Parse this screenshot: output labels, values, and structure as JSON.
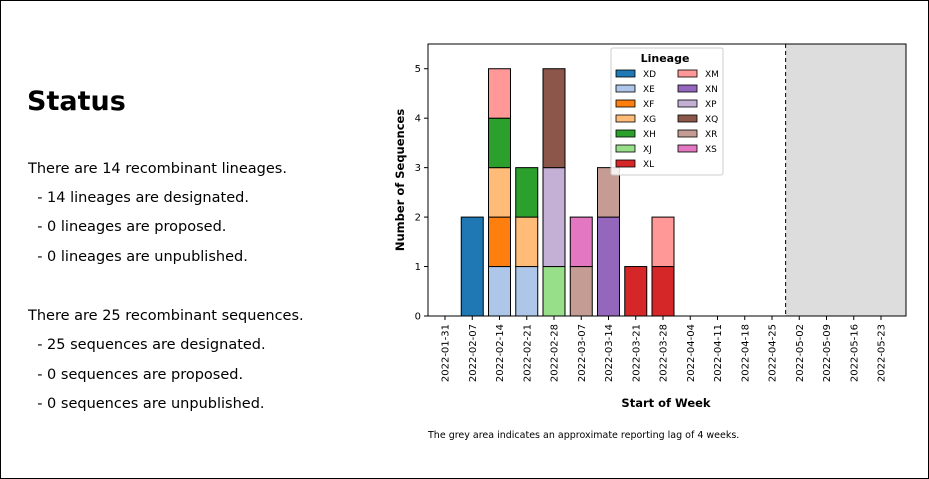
{
  "status": {
    "title": "Status",
    "lines": [
      "There are 14 recombinant lineages.",
      "  - 14 lineages are designated.",
      "  - 0 lineages are proposed.",
      "  - 0 lineages are unpublished.",
      "There are 25 recombinant sequences.",
      "  - 25 sequences are designated.",
      "  - 0 sequences are proposed.",
      "  - 0 sequences are unpublished."
    ]
  },
  "chart_data": {
    "type": "bar",
    "stacked": true,
    "xlabel": "Start of Week",
    "ylabel": "Number of Sequences",
    "ylim": [
      0,
      5.5
    ],
    "yticks": [
      0,
      1,
      2,
      3,
      4,
      5
    ],
    "categories": [
      "2022-01-31",
      "2022-02-07",
      "2022-02-14",
      "2022-02-21",
      "2022-02-28",
      "2022-03-07",
      "2022-03-14",
      "2022-03-21",
      "2022-03-28",
      "2022-04-04",
      "2022-04-11",
      "2022-04-18",
      "2022-04-25",
      "2022-05-02",
      "2022-05-09",
      "2022-05-16",
      "2022-05-23"
    ],
    "legend_title": "Lineage",
    "legend_position": "upper center",
    "series": [
      {
        "name": "XD",
        "color": "#1f77b4",
        "values": [
          0,
          2,
          0,
          0,
          0,
          0,
          0,
          0,
          0,
          0,
          0,
          0,
          0,
          0,
          0,
          0,
          0
        ]
      },
      {
        "name": "XE",
        "color": "#aec7e8",
        "values": [
          0,
          0,
          1,
          1,
          0,
          0,
          0,
          0,
          0,
          0,
          0,
          0,
          0,
          0,
          0,
          0,
          0
        ]
      },
      {
        "name": "XF",
        "color": "#ff7f0e",
        "values": [
          0,
          0,
          1,
          0,
          0,
          0,
          0,
          0,
          0,
          0,
          0,
          0,
          0,
          0,
          0,
          0,
          0
        ]
      },
      {
        "name": "XG",
        "color": "#ffbb78",
        "values": [
          0,
          0,
          1,
          1,
          0,
          0,
          0,
          0,
          0,
          0,
          0,
          0,
          0,
          0,
          0,
          0,
          0
        ]
      },
      {
        "name": "XH",
        "color": "#2ca02c",
        "values": [
          0,
          0,
          1,
          1,
          0,
          0,
          0,
          0,
          0,
          0,
          0,
          0,
          0,
          0,
          0,
          0,
          0
        ]
      },
      {
        "name": "XJ",
        "color": "#98df8a",
        "values": [
          0,
          0,
          0,
          0,
          1,
          0,
          0,
          0,
          0,
          0,
          0,
          0,
          0,
          0,
          0,
          0,
          0
        ]
      },
      {
        "name": "XL",
        "color": "#d62728",
        "values": [
          0,
          0,
          0,
          0,
          0,
          0,
          0,
          1,
          1,
          0,
          0,
          0,
          0,
          0,
          0,
          0,
          0
        ]
      },
      {
        "name": "XM",
        "color": "#ff9896",
        "values": [
          0,
          0,
          1,
          0,
          0,
          0,
          0,
          0,
          1,
          0,
          0,
          0,
          0,
          0,
          0,
          0,
          0
        ]
      },
      {
        "name": "XN",
        "color": "#9467bd",
        "values": [
          0,
          0,
          0,
          0,
          0,
          0,
          2,
          0,
          0,
          0,
          0,
          0,
          0,
          0,
          0,
          0,
          0
        ]
      },
      {
        "name": "XP",
        "color": "#c5b0d5",
        "values": [
          0,
          0,
          0,
          0,
          2,
          0,
          0,
          0,
          0,
          0,
          0,
          0,
          0,
          0,
          0,
          0,
          0
        ]
      },
      {
        "name": "XQ",
        "color": "#8c564b",
        "values": [
          0,
          0,
          0,
          0,
          2,
          0,
          0,
          0,
          0,
          0,
          0,
          0,
          0,
          0,
          0,
          0,
          0
        ]
      },
      {
        "name": "XR",
        "color": "#c49c94",
        "values": [
          0,
          0,
          0,
          0,
          0,
          1,
          1,
          0,
          0,
          0,
          0,
          0,
          0,
          0,
          0,
          0,
          0
        ]
      },
      {
        "name": "XS",
        "color": "#e377c2",
        "values": [
          0,
          0,
          0,
          0,
          0,
          1,
          0,
          0,
          0,
          0,
          0,
          0,
          0,
          0,
          0,
          0,
          0
        ]
      }
    ],
    "reporting_lag_start": "2022-04-25",
    "reporting_lag_color": "#dddddd",
    "caption": "The grey area indicates an approximate reporting lag of 4 weeks."
  }
}
